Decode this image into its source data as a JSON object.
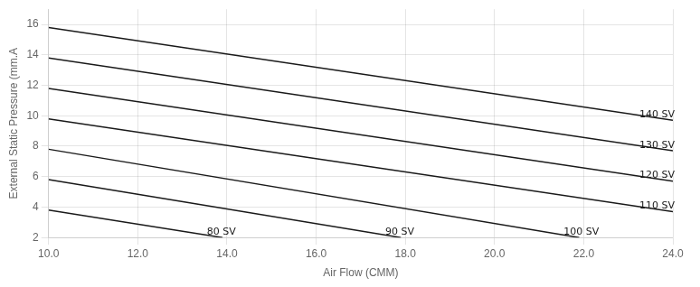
{
  "chart_data": {
    "type": "line",
    "xlabel": "Air Flow (CMM)",
    "ylabel": "External Static Pressure (mm.A",
    "xlim": [
      10.0,
      24.0
    ],
    "ylim": [
      2.0,
      17.0
    ],
    "xticks": [
      {
        "value": 10.0,
        "label": "10.0"
      },
      {
        "value": 12.0,
        "label": "12.0"
      },
      {
        "value": 14.0,
        "label": "14.0"
      },
      {
        "value": 16.0,
        "label": "16.0"
      },
      {
        "value": 18.0,
        "label": "18.0"
      },
      {
        "value": 20.0,
        "label": "20.0"
      },
      {
        "value": 22.0,
        "label": "22.0"
      },
      {
        "value": 24.0,
        "label": "24.0"
      }
    ],
    "yticks": [
      2,
      4,
      6,
      8,
      10,
      12,
      14,
      16
    ],
    "grid": true,
    "color": "#1a1a1a",
    "series": [
      {
        "x": [
          10.0,
          13.9
        ],
        "values": [
          3.8,
          2.0
        ]
      },
      {
        "x": [
          10.0,
          17.9
        ],
        "values": [
          5.8,
          2.0
        ]
      },
      {
        "x": [
          10.0,
          21.9
        ],
        "values": [
          7.8,
          2.0
        ]
      },
      {
        "x": [
          10.0,
          24.0
        ],
        "values": [
          9.8,
          3.7
        ]
      },
      {
        "x": [
          10.0,
          24.0
        ],
        "values": [
          11.8,
          5.7
        ]
      },
      {
        "x": [
          10.0,
          24.0
        ],
        "values": [
          13.8,
          7.7
        ]
      },
      {
        "x": [
          10.0,
          24.0
        ],
        "values": [
          15.8,
          9.7
        ]
      }
    ],
    "annotations": [
      {
        "text": "80 SV",
        "x": 13.55,
        "y": 2.05
      },
      {
        "text": "90 SV",
        "x": 17.55,
        "y": 2.05
      },
      {
        "text": "100 SV",
        "x": 21.55,
        "y": 2.05
      },
      {
        "text": "110 SV",
        "x": 23.25,
        "y": 3.75
      },
      {
        "text": "120 SV",
        "x": 23.25,
        "y": 5.75
      },
      {
        "text": "130 SV",
        "x": 23.25,
        "y": 7.75
      },
      {
        "text": "140 SV",
        "x": 23.25,
        "y": 9.75
      }
    ]
  }
}
